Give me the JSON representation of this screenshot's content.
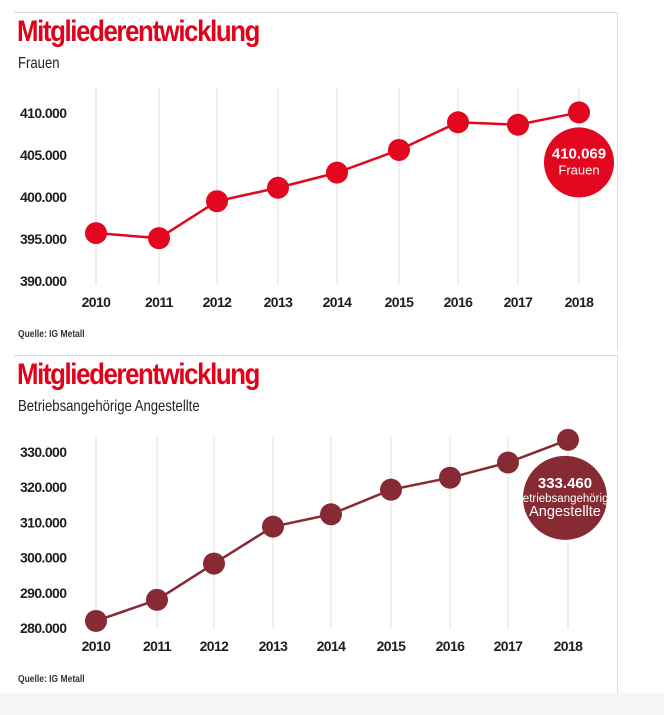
{
  "chart_data": [
    {
      "type": "line",
      "title": "Mitgliederentwicklung",
      "subtitle": "Frauen",
      "source": "Quelle: IG Metall",
      "color": "#e2071f",
      "title_color": "#e2001a",
      "categories": [
        "2010",
        "2011",
        "2012",
        "2013",
        "2014",
        "2015",
        "2016",
        "2017",
        "2018"
      ],
      "series": [
        {
          "name": "Frauen",
          "values": [
            395700,
            395100,
            399500,
            401100,
            402900,
            405600,
            408900,
            408600,
            410069
          ]
        }
      ],
      "yticks": [
        410000,
        405000,
        400000,
        395000,
        390000
      ],
      "ytick_labels": [
        "410.000",
        "405.000",
        "400.000",
        "395.000",
        "390.000"
      ],
      "ylim": [
        390000,
        410000
      ],
      "xlabel": "",
      "ylabel": "",
      "grid": "vertical",
      "annotation": {
        "value": "410.069",
        "label_lines": [
          "Frauen"
        ],
        "category": "2018"
      }
    },
    {
      "type": "line",
      "title": "Mitgliederentwicklung",
      "subtitle": "Betriebsangehörige Angestellte",
      "source": "Quelle: IG Metall",
      "color": "#862a33",
      "title_color": "#e2001a",
      "categories": [
        "2010",
        "2011",
        "2012",
        "2013",
        "2014",
        "2015",
        "2016",
        "2017",
        "2018"
      ],
      "series": [
        {
          "name": "Betriebsangehörige Angestellte",
          "values": [
            282000,
            288000,
            298300,
            308800,
            312300,
            319300,
            322700,
            327000,
            333460
          ]
        }
      ],
      "yticks": [
        330000,
        320000,
        310000,
        300000,
        290000,
        280000
      ],
      "ytick_labels": [
        "330.000",
        "320.000",
        "310.000",
        "300.000",
        "290.000",
        "280.000"
      ],
      "ylim": [
        280000,
        330000
      ],
      "xlabel": "",
      "ylabel": "",
      "grid": "vertical",
      "annotation": {
        "value": "333.460",
        "label_lines": [
          "Betriebsangehörige",
          "Angestellte"
        ],
        "category": "2018"
      }
    }
  ]
}
